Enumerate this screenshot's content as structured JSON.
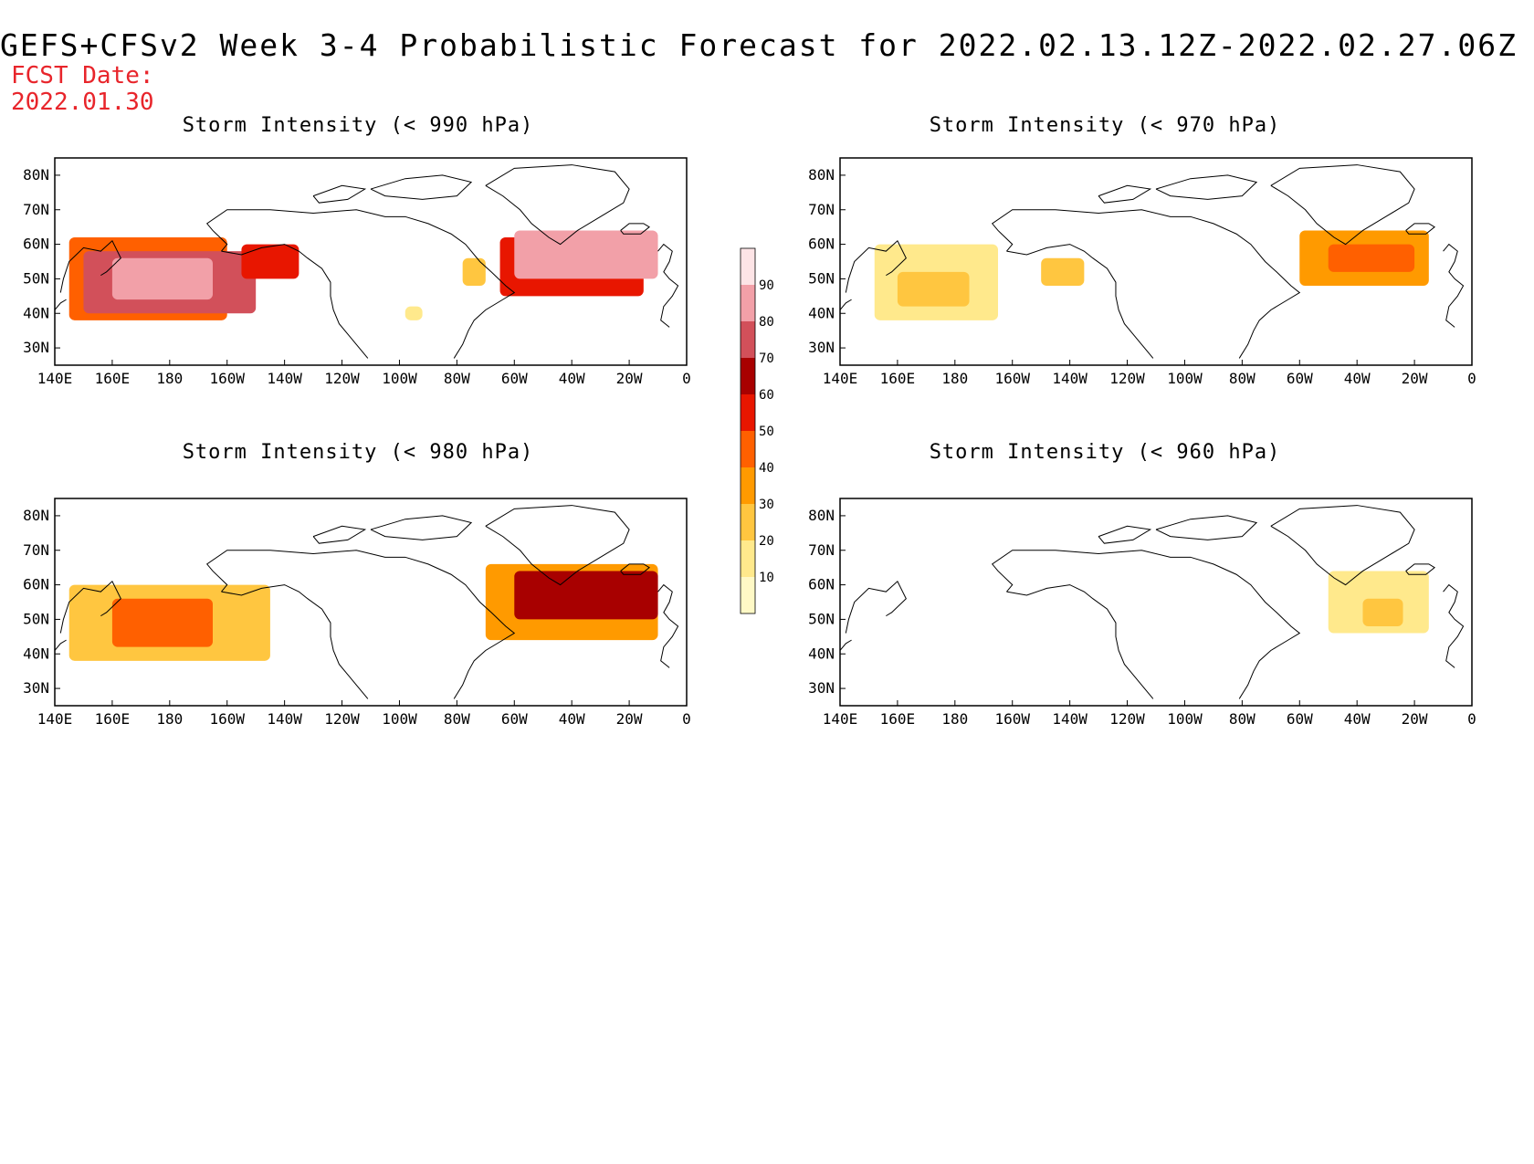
{
  "title": "GEFS+CFSv2 Week 3-4 Probabilistic Forecast for 2022.02.13.12Z-2022.02.27.06Z",
  "fcst_date_label": "FCST Date:",
  "fcst_date": "2022.01.30",
  "lon_ticks": [
    "140E",
    "160E",
    "180",
    "160W",
    "140W",
    "120W",
    "100W",
    "80W",
    "60W",
    "40W",
    "20W",
    "0"
  ],
  "lat_ticks": [
    "80N",
    "70N",
    "60N",
    "50N",
    "40N",
    "30N"
  ],
  "colorbar": {
    "labels": [
      "10",
      "20",
      "30",
      "40",
      "50",
      "60",
      "70",
      "80",
      "90"
    ],
    "colors": [
      "#fff9c6",
      "#ffe98c",
      "#ffc640",
      "#ff9a00",
      "#ff6000",
      "#e81600",
      "#a80000",
      "#d2505a",
      "#f2a0a8",
      "#fde4e6"
    ]
  },
  "panels": [
    {
      "title": "Storm Intensity (< 990 hPa)",
      "regions": [
        {
          "lon": [
            145,
            200
          ],
          "lat": [
            38,
            62
          ],
          "level": 4
        },
        {
          "lon": [
            150,
            210
          ],
          "lat": [
            40,
            58
          ],
          "level": 7
        },
        {
          "lon": [
            160,
            195
          ],
          "lat": [
            44,
            56
          ],
          "level": 8
        },
        {
          "lon": [
            205,
            225
          ],
          "lat": [
            50,
            60
          ],
          "level": 5
        },
        {
          "lon": [
            262,
            268
          ],
          "lat": [
            38,
            42
          ],
          "level": 1
        },
        {
          "lon": [
            282,
            290
          ],
          "lat": [
            48,
            56
          ],
          "level": 2
        },
        {
          "lon": [
            295,
            345
          ],
          "lat": [
            45,
            62
          ],
          "level": 5
        },
        {
          "lon": [
            300,
            350
          ],
          "lat": [
            50,
            64
          ],
          "level": 8
        }
      ]
    },
    {
      "title": "Storm Intensity (< 970 hPa)",
      "regions": [
        {
          "lon": [
            152,
            195
          ],
          "lat": [
            38,
            60
          ],
          "level": 1
        },
        {
          "lon": [
            160,
            185
          ],
          "lat": [
            42,
            52
          ],
          "level": 2
        },
        {
          "lon": [
            210,
            225
          ],
          "lat": [
            48,
            56
          ],
          "level": 2
        },
        {
          "lon": [
            300,
            345
          ],
          "lat": [
            48,
            64
          ],
          "level": 3
        },
        {
          "lon": [
            310,
            340
          ],
          "lat": [
            52,
            60
          ],
          "level": 4
        }
      ]
    },
    {
      "title": "Storm Intensity (< 980 hPa)",
      "regions": [
        {
          "lon": [
            145,
            215
          ],
          "lat": [
            38,
            60
          ],
          "level": 2
        },
        {
          "lon": [
            160,
            195
          ],
          "lat": [
            42,
            56
          ],
          "level": 4
        },
        {
          "lon": [
            290,
            350
          ],
          "lat": [
            44,
            66
          ],
          "level": 3
        },
        {
          "lon": [
            300,
            350
          ],
          "lat": [
            50,
            64
          ],
          "level": 6
        }
      ]
    },
    {
      "title": "Storm Intensity (< 960 hPa)",
      "regions": [
        {
          "lon": [
            310,
            345
          ],
          "lat": [
            46,
            64
          ],
          "level": 1
        },
        {
          "lon": [
            322,
            336
          ],
          "lat": [
            48,
            56
          ],
          "level": 2
        }
      ]
    }
  ]
}
